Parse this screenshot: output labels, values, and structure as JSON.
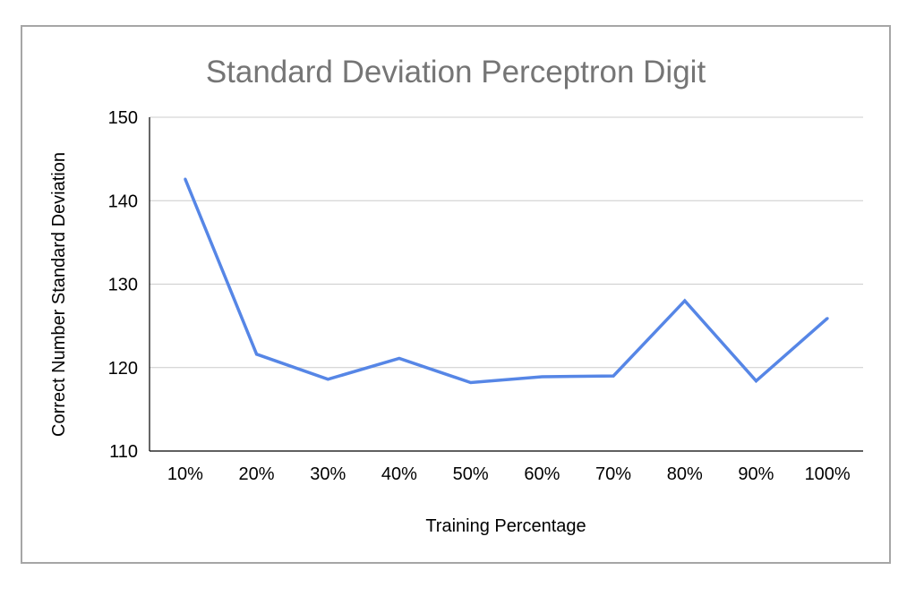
{
  "chart_data": {
    "type": "line",
    "title": "Standard Deviation Perceptron Digit",
    "xlabel": "Training Percentage",
    "ylabel": "Correct Number Standard Deviation",
    "categories": [
      "10%",
      "20%",
      "30%",
      "40%",
      "50%",
      "60%",
      "70%",
      "80%",
      "90%",
      "100%"
    ],
    "series": [
      {
        "values": [
          142.6,
          121.6,
          118.6,
          121.1,
          118.2,
          118.9,
          119.0,
          128.0,
          118.4,
          125.9
        ]
      }
    ],
    "ylim": [
      110,
      150
    ],
    "yticks": [
      110,
      120,
      130,
      140,
      150
    ],
    "grid": true,
    "legend": "none",
    "colors": {
      "line": "#5686e6",
      "grid": "#cccccc",
      "axis": "#000000",
      "title": "#757575",
      "frame": "#a6a6a6"
    }
  }
}
